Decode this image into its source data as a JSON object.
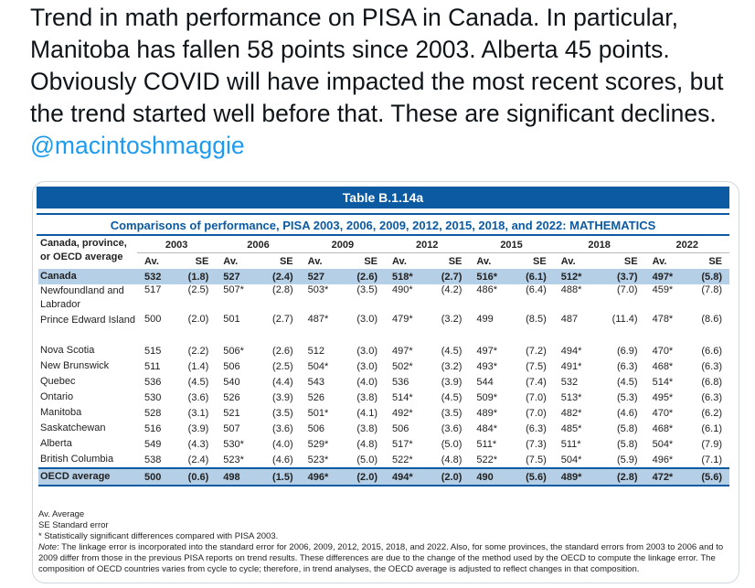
{
  "tweet": {
    "text": "Trend in math performance on PISA in Canada.  In particular, Manitoba has fallen 58 points since 2003.  Alberta 45 points.  Obviously COVID will have impacted the most recent scores, but the trend started well before that. These are significant declines. ",
    "mention": "@macintoshmaggie"
  },
  "table": {
    "banner": "Table B.1.14a",
    "subtitle": "Comparisons of performance, PISA 2003, 2006, 2009, 2012, 2015, 2018, and 2022: MATHEMATICS",
    "row_header": "Canada, province, or OECD average",
    "years": [
      "2003",
      "2006",
      "2009",
      "2012",
      "2015",
      "2018",
      "2022"
    ],
    "av_label": "Av.",
    "se_label": "SE",
    "rows": [
      {
        "name": "Canada",
        "highlight": true,
        "values": [
          "532",
          "(1.8)",
          "527",
          "(2.4)",
          "527",
          "(2.6)",
          "518*",
          "(2.7)",
          "516*",
          "(6.1)",
          "512*",
          "(3.7)",
          "497*",
          "(5.8)"
        ]
      },
      {
        "name": "Newfoundland and Labrador",
        "values": [
          "517",
          "(2.5)",
          "507*",
          "(2.8)",
          "503*",
          "(3.5)",
          "490*",
          "(4.2)",
          "486*",
          "(6.4)",
          "488*",
          "(7.0)",
          "459*",
          "(7.8)"
        ]
      },
      {
        "name": "Prince Edward Island",
        "values": [
          "500",
          "(2.0)",
          "501",
          "(2.7)",
          "487*",
          "(3.0)",
          "479*",
          "(3.2)",
          "499",
          "(8.5)",
          "487",
          "(11.4)",
          "478*",
          "(8.6)"
        ]
      },
      {
        "name": "Nova Scotia",
        "values": [
          "515",
          "(2.2)",
          "506*",
          "(2.6)",
          "512",
          "(3.0)",
          "497*",
          "(4.5)",
          "497*",
          "(7.2)",
          "494*",
          "(6.9)",
          "470*",
          "(6.6)"
        ]
      },
      {
        "name": "New Brunswick",
        "values": [
          "511",
          "(1.4)",
          "506",
          "(2.5)",
          "504*",
          "(3.0)",
          "502*",
          "(3.2)",
          "493*",
          "(7.5)",
          "491*",
          "(6.3)",
          "468*",
          "(6.3)"
        ]
      },
      {
        "name": "Quebec",
        "values": [
          "536",
          "(4.5)",
          "540",
          "(4.4)",
          "543",
          "(4.0)",
          "536",
          "(3.9)",
          "544",
          "(7.4)",
          "532",
          "(4.5)",
          "514*",
          "(6.8)"
        ]
      },
      {
        "name": "Ontario",
        "values": [
          "530",
          "(3.6)",
          "526",
          "(3.9)",
          "526",
          "(3.8)",
          "514*",
          "(4.5)",
          "509*",
          "(7.0)",
          "513*",
          "(5.3)",
          "495*",
          "(6.3)"
        ]
      },
      {
        "name": "Manitoba",
        "values": [
          "528",
          "(3.1)",
          "521",
          "(3.5)",
          "501*",
          "(4.1)",
          "492*",
          "(3.5)",
          "489*",
          "(7.0)",
          "482*",
          "(4.6)",
          "470*",
          "(6.2)"
        ]
      },
      {
        "name": "Saskatchewan",
        "values": [
          "516",
          "(3.9)",
          "507",
          "(3.6)",
          "506",
          "(3.8)",
          "506",
          "(3.6)",
          "484*",
          "(6.3)",
          "485*",
          "(5.8)",
          "468*",
          "(6.1)"
        ]
      },
      {
        "name": "Alberta",
        "values": [
          "549",
          "(4.3)",
          "530*",
          "(4.0)",
          "529*",
          "(4.8)",
          "517*",
          "(5.0)",
          "511*",
          "(7.3)",
          "511*",
          "(5.8)",
          "504*",
          "(7.9)"
        ]
      },
      {
        "name": "British Columbia",
        "values": [
          "538",
          "(2.4)",
          "523*",
          "(4.6)",
          "523*",
          "(5.0)",
          "522*",
          "(4.8)",
          "522*",
          "(7.5)",
          "504*",
          "(5.9)",
          "496*",
          "(7.1)"
        ]
      },
      {
        "name": "OECD average",
        "highlight": true,
        "oecd": true,
        "values": [
          "500",
          "(0.6)",
          "498",
          "(1.5)",
          "496*",
          "(2.0)",
          "494*",
          "(2.0)",
          "490",
          "(5.6)",
          "489*",
          "(2.8)",
          "472*",
          "(5.6)"
        ]
      }
    ],
    "notes": {
      "av": "Av.  Average",
      "se": "SE  Standard error",
      "star": "* Statistically significant differences compared with PISA 2003.",
      "note_label": "Note",
      "note": ": The linkage error is incorporated into the standard error for 2006, 2009, 2012, 2015, 2018, and 2022. Also, for some provinces, the standard errors from 2003 to 2006 and to 2009 differ from those in the previous PISA reports on trend results.  These differences are due to the change of the method used by the OECD to compute the linkage error. The composition of OECD countries varies from cycle to cycle; therefore, in trend analyses, the OECD average is adjusted to reflect changes in that composition."
    }
  }
}
